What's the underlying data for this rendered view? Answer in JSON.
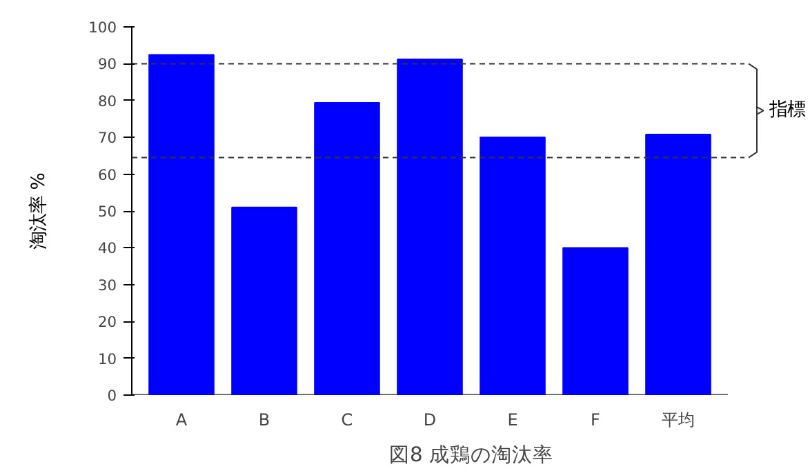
{
  "chart_data": {
    "type": "bar",
    "title": "図8 成鶏の淘汰率",
    "ylabel": "淘汰率 %",
    "categories": [
      "A",
      "B",
      "C",
      "D",
      "E",
      "F",
      "平均"
    ],
    "values": [
      92.4,
      51,
      79.4,
      91.2,
      70,
      40,
      70.8
    ],
    "color": "#0000ff",
    "ylim": [
      0,
      100
    ],
    "yticks": [
      0,
      10,
      20,
      30,
      40,
      50,
      60,
      70,
      80,
      90,
      100
    ],
    "ref_lines": [
      {
        "axis": "y",
        "value": 90,
        "line_style": "dashed"
      },
      {
        "axis": "y",
        "value": 64.5,
        "line_style": "dashed"
      }
    ],
    "annotations": [
      "指標"
    ],
    "grid": false
  }
}
